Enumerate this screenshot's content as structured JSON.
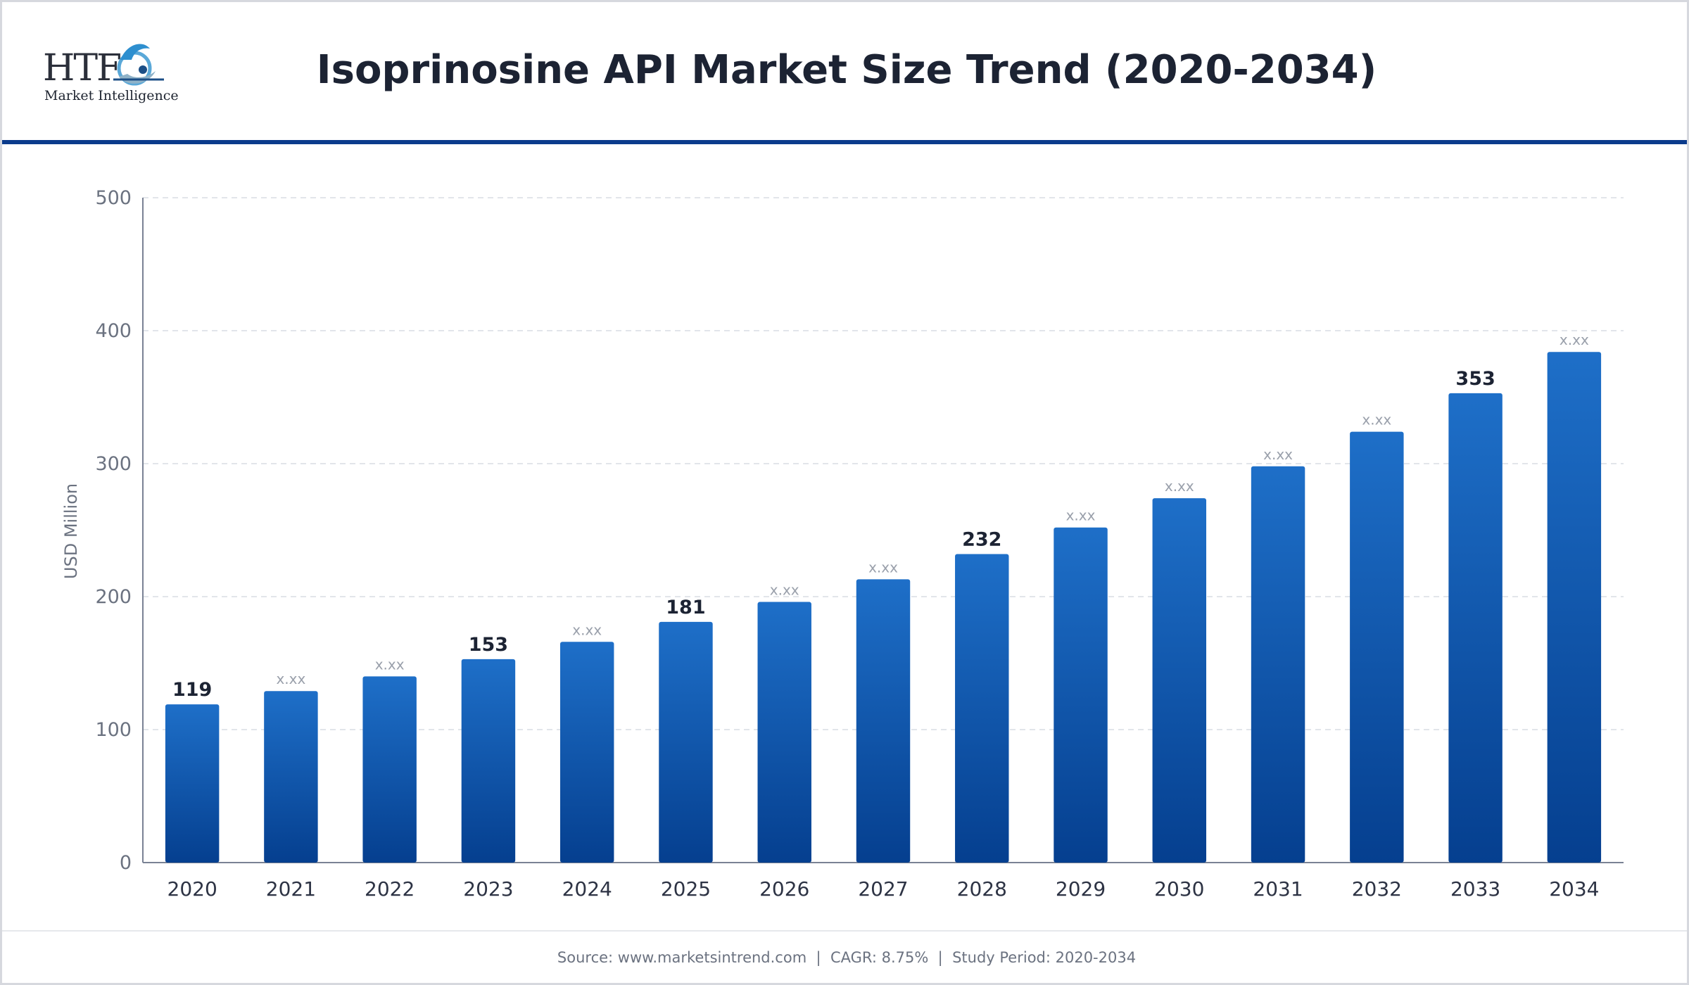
{
  "header": {
    "title": "Isoprinosine API Market Size Trend (2020-2034)",
    "logo_text": "HTF",
    "logo_subtext": "Market Intelligence"
  },
  "footer": {
    "source": "Source: www.marketsintrend.com",
    "cagr": "CAGR: 8.75%",
    "study_period": "Study Period: 2020-2034",
    "separator": "  |  "
  },
  "colors": {
    "bar_top": "#1e6fc8",
    "bar_bottom": "#053f8f",
    "header_rule": "#0b3b8c",
    "grid": "#e2e5ea",
    "axis": "#7a8294",
    "tick_text": "#6b7280",
    "category_text": "#2d3344",
    "label_bold": "#1c2333",
    "label_hidden": "#9aa0ab"
  },
  "chart_data": {
    "type": "bar",
    "title": "Isoprinosine API Market Size Trend (2020-2034)",
    "xlabel": "",
    "ylabel": "USD Million",
    "ylim": [
      0,
      500
    ],
    "yticks": [
      0,
      100,
      200,
      300,
      400,
      500
    ],
    "grid": true,
    "categories": [
      "2020",
      "2021",
      "2022",
      "2023",
      "2024",
      "2025",
      "2026",
      "2027",
      "2028",
      "2029",
      "2030",
      "2031",
      "2032",
      "2033",
      "2034"
    ],
    "values": [
      119,
      129,
      140,
      153,
      166,
      181,
      196,
      213,
      232,
      252,
      274,
      298,
      324,
      353,
      384
    ],
    "data_labels": [
      "119",
      "x.xx",
      "x.xx",
      "153",
      "x.xx",
      "181",
      "x.xx",
      "x.xx",
      "232",
      "x.xx",
      "x.xx",
      "x.xx",
      "x.xx",
      "353",
      "x.xx"
    ]
  }
}
